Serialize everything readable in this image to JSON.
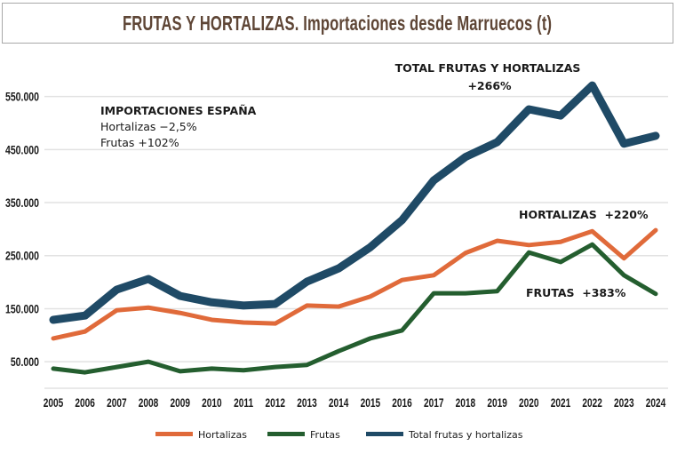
{
  "chart_data": {
    "type": "line",
    "title": "FRUTAS Y HORTALIZAS. Importaciones desde Marruecos (t)",
    "xlabel": "",
    "ylabel": "",
    "ylim": [
      0,
      600000
    ],
    "yticks": [
      50000,
      150000,
      250000,
      350000,
      450000,
      550000
    ],
    "ytick_labels": [
      "50.000",
      "150.000",
      "250.000",
      "350.000",
      "450.000",
      "550.000"
    ],
    "grid": true,
    "legend_position": "bottom",
    "x": [
      "2005",
      "2006",
      "2007",
      "2008",
      "2009",
      "2010",
      "2011",
      "2012",
      "2013",
      "2014",
      "2015",
      "2016",
      "2017",
      "2018",
      "2019",
      "2020",
      "2021",
      "2022",
      "2023",
      "2024"
    ],
    "series": [
      {
        "name": "Hortalizas",
        "color": "#e06a3a",
        "values": [
          94000,
          107000,
          147000,
          152000,
          142000,
          129000,
          124000,
          122000,
          156000,
          154000,
          173000,
          204000,
          213000,
          255000,
          278000,
          270000,
          276000,
          296000,
          245000,
          298000
        ]
      },
      {
        "name": "Frutas",
        "color": "#245e2f",
        "values": [
          37000,
          30000,
          40000,
          50000,
          32000,
          37000,
          34000,
          40000,
          44000,
          70000,
          94000,
          109000,
          179000,
          179000,
          183000,
          256000,
          238000,
          271000,
          213000,
          178000
        ]
      },
      {
        "name": "Total frutas y hortalizas",
        "color": "#1f4a66",
        "values": [
          129000,
          137000,
          186000,
          206000,
          174000,
          162000,
          156000,
          159000,
          201000,
          226000,
          266000,
          317000,
          392000,
          436000,
          464000,
          526000,
          514000,
          571000,
          461000,
          476000
        ]
      }
    ],
    "annotations": {
      "spain_heading": "IMPORTACIONES ESPAÑA",
      "spain_hortalizas": "Hortalizas −2,5%",
      "spain_frutas": "Frutas +102%",
      "total_label": "TOTAL FRUTAS Y HORTALIZAS",
      "total_pct": "+266%",
      "hortalizas_label": "HORTALIZAS  +220%",
      "frutas_label": "FRUTAS  +383%"
    }
  }
}
